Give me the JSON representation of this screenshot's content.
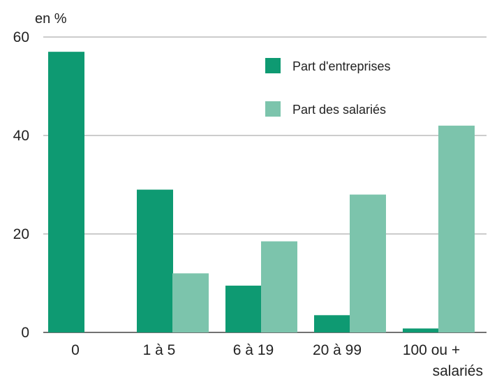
{
  "chart_data": {
    "type": "bar",
    "title": "",
    "ylabel": "en %",
    "xlabel": "salariés",
    "categories": [
      "0",
      "1 à 5",
      "6 à 19",
      "20 à 99",
      "100 ou +"
    ],
    "series": [
      {
        "name": "Part d'entreprises",
        "color": "#0e9a72",
        "values": [
          57,
          29,
          9.5,
          3.5,
          0.8
        ]
      },
      {
        "name": "Part des salariés",
        "color": "#7cc4ac",
        "values": [
          0,
          12,
          18.5,
          28,
          42
        ]
      }
    ],
    "ylim": [
      0,
      60
    ],
    "yticks": [
      0,
      20,
      40,
      60
    ],
    "grid": true,
    "legend": "top-right"
  }
}
